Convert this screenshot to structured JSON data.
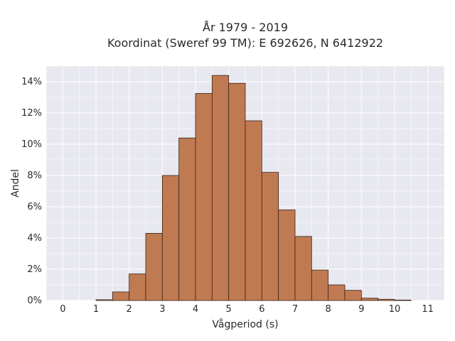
{
  "chart_data": {
    "type": "bar",
    "title_line1": "År 1979 - 2019",
    "title_line2": "Koordinat (Sweref 99 TM): E 692626, N 6412922",
    "xlabel": "Vågperiod (s)",
    "ylabel": "Andel",
    "xlim": [
      -0.5,
      11.5
    ],
    "ylim": [
      0,
      0.15
    ],
    "x_ticks": [
      0,
      1,
      2,
      3,
      4,
      5,
      6,
      7,
      8,
      9,
      10,
      11
    ],
    "y_ticks": [
      0,
      0.02,
      0.04,
      0.06,
      0.08,
      0.1,
      0.12,
      0.14
    ],
    "y_tick_labels": [
      "0%",
      "2%",
      "4%",
      "6%",
      "8%",
      "10%",
      "12%",
      "14%"
    ],
    "grid": true,
    "bin_width": 0.5,
    "bins": [
      {
        "x0": 1.0,
        "x1": 1.5,
        "value": 0.0005
      },
      {
        "x0": 1.5,
        "x1": 2.0,
        "value": 0.0055
      },
      {
        "x0": 2.0,
        "x1": 2.5,
        "value": 0.017
      },
      {
        "x0": 2.5,
        "x1": 3.0,
        "value": 0.043
      },
      {
        "x0": 3.0,
        "x1": 3.5,
        "value": 0.08
      },
      {
        "x0": 3.5,
        "x1": 4.0,
        "value": 0.104
      },
      {
        "x0": 4.0,
        "x1": 4.5,
        "value": 0.1325
      },
      {
        "x0": 4.5,
        "x1": 5.0,
        "value": 0.144
      },
      {
        "x0": 5.0,
        "x1": 5.5,
        "value": 0.139
      },
      {
        "x0": 5.5,
        "x1": 6.0,
        "value": 0.115
      },
      {
        "x0": 6.0,
        "x1": 6.5,
        "value": 0.082
      },
      {
        "x0": 6.5,
        "x1": 7.0,
        "value": 0.058
      },
      {
        "x0": 7.0,
        "x1": 7.5,
        "value": 0.041
      },
      {
        "x0": 7.5,
        "x1": 8.0,
        "value": 0.0195
      },
      {
        "x0": 8.0,
        "x1": 8.5,
        "value": 0.01
      },
      {
        "x0": 8.5,
        "x1": 9.0,
        "value": 0.0065
      },
      {
        "x0": 9.0,
        "x1": 9.5,
        "value": 0.0015
      },
      {
        "x0": 9.5,
        "x1": 10.0,
        "value": 0.0008
      },
      {
        "x0": 10.0,
        "x1": 10.5,
        "value": 0.0003
      }
    ],
    "colors": {
      "bar_fill": "#c07a52",
      "bar_stroke": "#3a2418",
      "plot_bg": "#e8e8f0",
      "grid": "#ffffff"
    }
  }
}
